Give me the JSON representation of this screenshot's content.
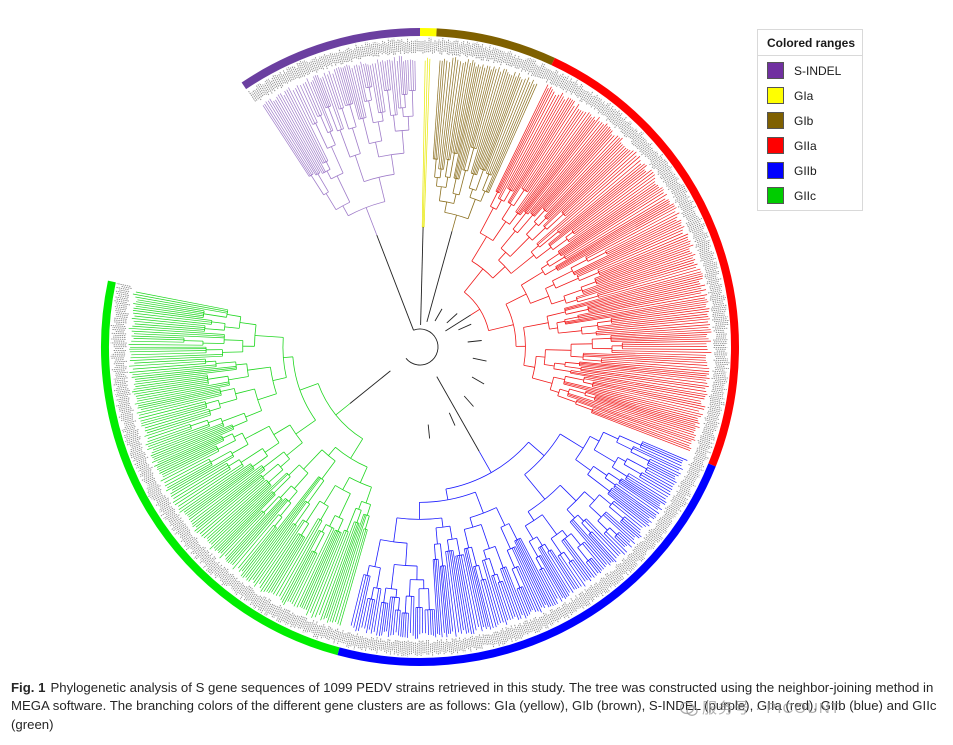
{
  "legend": {
    "title": "Colored ranges",
    "items": [
      {
        "label": "S-INDEL",
        "color": "#7030a0"
      },
      {
        "label": "GIa",
        "color": "#ffff00"
      },
      {
        "label": "GIb",
        "color": "#7f6000"
      },
      {
        "label": "GIIa",
        "color": "#ff0000"
      },
      {
        "label": "GIIb",
        "color": "#0000ff"
      },
      {
        "label": "GIIc",
        "color": "#00cc00"
      }
    ]
  },
  "clades": [
    {
      "name": "S-INDEL",
      "ring_color": "#6b3fa0",
      "branch_color": "#9f7cc9",
      "start_deg": 236,
      "end_deg": 270,
      "tips": 40,
      "start_ring": true
    },
    {
      "name": "GIa",
      "ring_color": "#ffff00",
      "branch_color": "#e8e800",
      "start_deg": 270,
      "end_deg": 273,
      "tips": 4
    },
    {
      "name": "GIb",
      "ring_color": "#7f6000",
      "branch_color": "#8c7020",
      "start_deg": 273,
      "end_deg": 295,
      "tips": 55
    },
    {
      "name": "GIIa",
      "ring_color": "#ff0000",
      "branch_color": "#f01818",
      "start_deg": 295,
      "end_deg": 382,
      "tips": 190
    },
    {
      "name": "GIIb",
      "ring_color": "#0000ff",
      "branch_color": "#1a1aff",
      "start_deg": 382,
      "end_deg": 465,
      "tips": 180
    },
    {
      "name": "GIIc",
      "ring_color": "#00ee00",
      "branch_color": "#1fd61f",
      "start_deg": 465,
      "end_deg": 552,
      "tips": 190
    }
  ],
  "caption": {
    "label": "Fig. 1",
    "text": "Phylogenetic analysis of S gene sequences of 1099 PEDV strains retrieved in this study. The tree was constructed using the neighbor-joining method in MEGA software. The branching colors of the different gene clusters are as follows: GIa (yellow), GIb (brown), S-INDEL (purple), GIIa (red), GIIb (blue) and GIIc (green)"
  },
  "watermark": {
    "text": "服务号 · PICOUNT"
  }
}
